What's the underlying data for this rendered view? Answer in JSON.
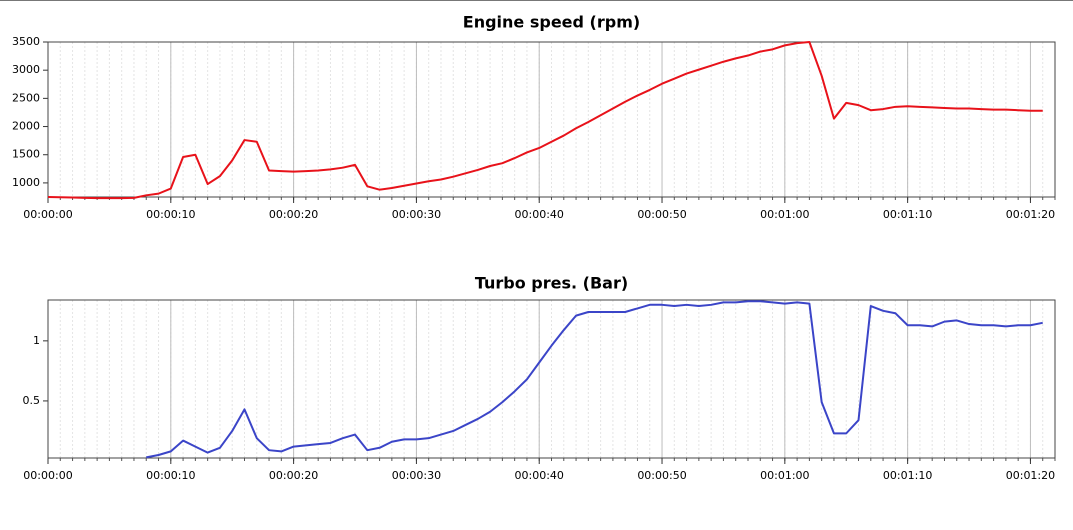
{
  "chart_data": [
    {
      "type": "line",
      "title": "Engine speed (rpm)",
      "x": [
        0,
        1,
        2,
        3,
        4,
        5,
        6,
        7,
        8,
        9,
        10,
        11,
        12,
        13,
        14,
        15,
        16,
        17,
        18,
        19,
        20,
        21,
        22,
        23,
        24,
        25,
        26,
        27,
        28,
        29,
        30,
        31,
        32,
        33,
        34,
        35,
        36,
        37,
        38,
        39,
        40,
        41,
        42,
        43,
        44,
        45,
        46,
        47,
        48,
        49,
        50,
        51,
        52,
        53,
        54,
        55,
        56,
        57,
        58,
        59,
        60,
        61,
        62,
        63,
        64,
        65,
        66,
        67,
        68,
        69,
        70,
        71,
        72,
        73,
        74,
        75,
        76,
        77,
        78,
        79,
        80,
        81
      ],
      "series": [
        {
          "name": "Engine speed",
          "color": "#e8121a",
          "values": [
            750,
            745,
            740,
            735,
            730,
            730,
            730,
            735,
            780,
            810,
            900,
            1460,
            1500,
            980,
            1120,
            1400,
            1760,
            1730,
            1220,
            1210,
            1200,
            1210,
            1220,
            1240,
            1270,
            1320,
            940,
            880,
            910,
            950,
            990,
            1030,
            1060,
            1110,
            1170,
            1230,
            1300,
            1350,
            1440,
            1540,
            1620,
            1730,
            1840,
            1970,
            2080,
            2200,
            2320,
            2440,
            2550,
            2650,
            2760,
            2850,
            2940,
            3010,
            3080,
            3150,
            3210,
            3260,
            3330,
            3370,
            3440,
            3480,
            3500,
            2900,
            2140,
            2420,
            2380,
            2290,
            2310,
            2350,
            2360,
            2350,
            2340,
            2330,
            2320,
            2320,
            2310,
            2300,
            2300,
            2290,
            2280,
            2280
          ]
        }
      ],
      "xlim": [
        0,
        82
      ],
      "ylim": [
        750,
        3500
      ],
      "xticks": [
        {
          "value": 0,
          "label": "00:00:00"
        },
        {
          "value": 10,
          "label": "00:00:10"
        },
        {
          "value": 20,
          "label": "00:00:20"
        },
        {
          "value": 30,
          "label": "00:00:30"
        },
        {
          "value": 40,
          "label": "00:00:40"
        },
        {
          "value": 50,
          "label": "00:00:50"
        },
        {
          "value": 60,
          "label": "00:01:00"
        },
        {
          "value": 70,
          "label": "00:01:10"
        },
        {
          "value": 80,
          "label": "00:01:20"
        }
      ],
      "yticks": [
        1000,
        1500,
        2000,
        2500,
        3000,
        3500
      ],
      "grid": true
    },
    {
      "type": "line",
      "title": "Turbo pres. (Bar)",
      "x": [
        0,
        1,
        2,
        3,
        4,
        5,
        6,
        7,
        8,
        9,
        10,
        11,
        12,
        13,
        14,
        15,
        16,
        17,
        18,
        19,
        20,
        21,
        22,
        23,
        24,
        25,
        26,
        27,
        28,
        29,
        30,
        31,
        32,
        33,
        34,
        35,
        36,
        37,
        38,
        39,
        40,
        41,
        42,
        43,
        44,
        45,
        46,
        47,
        48,
        49,
        50,
        51,
        52,
        53,
        54,
        55,
        56,
        57,
        58,
        59,
        60,
        61,
        62,
        63,
        64,
        65,
        66,
        67,
        68,
        69,
        70,
        71,
        72,
        73,
        74,
        75,
        76,
        77,
        78,
        79,
        80,
        81
      ],
      "series": [
        {
          "name": "Turbo pres.",
          "color": "#3b45c8",
          "values": [
            null,
            null,
            null,
            null,
            null,
            null,
            null,
            null,
            0.03,
            0.05,
            0.08,
            0.17,
            0.12,
            0.07,
            0.11,
            0.25,
            0.43,
            0.19,
            0.09,
            0.08,
            0.12,
            0.13,
            0.14,
            0.15,
            0.19,
            0.22,
            0.09,
            0.11,
            0.16,
            0.18,
            0.18,
            0.19,
            0.22,
            0.25,
            0.3,
            0.35,
            0.41,
            0.49,
            0.58,
            0.68,
            0.82,
            0.96,
            1.09,
            1.21,
            1.24,
            1.24,
            1.24,
            1.24,
            1.27,
            1.3,
            1.3,
            1.29,
            1.3,
            1.29,
            1.3,
            1.32,
            1.32,
            1.33,
            1.33,
            1.32,
            1.31,
            1.32,
            1.31,
            0.49,
            0.23,
            0.23,
            0.34,
            1.29,
            1.25,
            1.23,
            1.13,
            1.13,
            1.12,
            1.16,
            1.17,
            1.14,
            1.13,
            1.13,
            1.12,
            1.13,
            1.13,
            1.15
          ]
        }
      ],
      "xlim": [
        0,
        82
      ],
      "ylim": [
        0.025,
        1.34
      ],
      "xticks": [
        {
          "value": 0,
          "label": "00:00:00"
        },
        {
          "value": 10,
          "label": "00:00:10"
        },
        {
          "value": 20,
          "label": "00:00:20"
        },
        {
          "value": 30,
          "label": "00:00:30"
        },
        {
          "value": 40,
          "label": "00:00:40"
        },
        {
          "value": 50,
          "label": "00:00:50"
        },
        {
          "value": 60,
          "label": "00:01:00"
        },
        {
          "value": 70,
          "label": "00:01:10"
        },
        {
          "value": 80,
          "label": "00:01:20"
        }
      ],
      "yticks": [
        0.5,
        1
      ],
      "grid": true
    }
  ]
}
